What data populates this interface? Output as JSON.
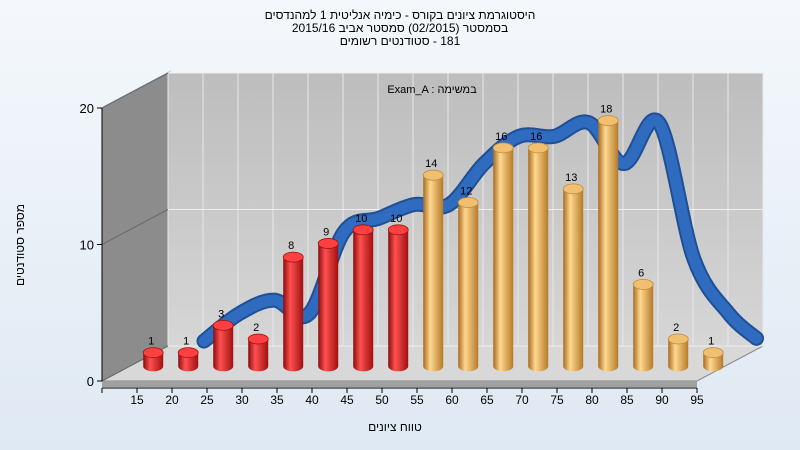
{
  "title": {
    "line1": "היסטוגרמת ציונים בקורס - כימיה אנליטית 1 למהנדסים",
    "line2": "בסמסטר  (02/2015)  סמסטר אביב 2015/16",
    "line3": "181 - סטודנטים רשומים"
  },
  "colors": {
    "fail": "#e02020",
    "pass": "#e8a840",
    "curve": "#2f6cc0",
    "back": "#c8c8c8",
    "side": "#8c8c8c"
  },
  "chart_data": {
    "type": "bar",
    "title": "היסטוגרמת ציונים בקורס - כימיה אנליטית 1 למהנדסים",
    "xlabel": "טווח ציונים",
    "ylabel": "מספר סטודנטים",
    "legend": "Exam_A : במשימה",
    "categories": [
      "15",
      "20",
      "25",
      "30",
      "35",
      "40",
      "45",
      "50",
      "55",
      "60",
      "65",
      "70",
      "75",
      "80",
      "85",
      "90",
      "95"
    ],
    "values": [
      1,
      1,
      3,
      2,
      8,
      9,
      10,
      10,
      14,
      12,
      16,
      16,
      13,
      18,
      6,
      2,
      1
    ],
    "pass_from": "55",
    "ylim": [
      0,
      20
    ],
    "yticks": [
      0,
      10,
      20
    ],
    "curve_y": [
      null,
      1,
      3,
      4,
      3,
      9,
      10,
      11,
      11,
      14,
      16,
      16,
      17,
      14,
      17,
      7,
      3
    ],
    "grid": true
  }
}
